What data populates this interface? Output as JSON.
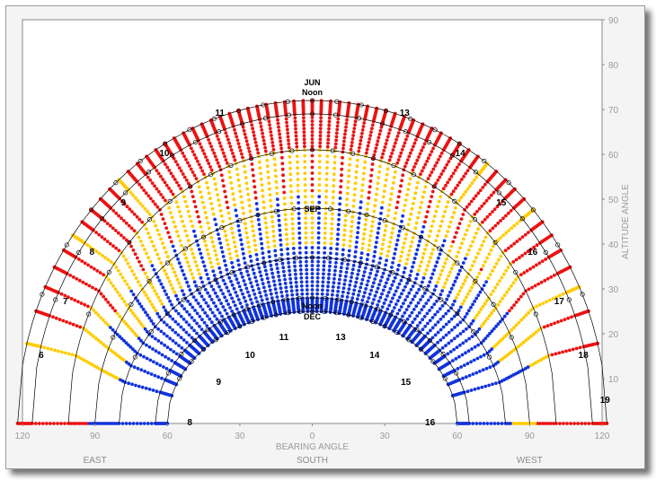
{
  "colors": {
    "hot": "#ee1111",
    "warm": "#ffcc00",
    "cool": "#1133dd",
    "curve": "#000000",
    "frame_bg": "#f4f4f4",
    "plot_bg": "#ffffff",
    "axis_text": "#9a9a9a"
  },
  "chart_data": {
    "type": "scatter",
    "title": "",
    "xlabel": "BEARING ANGLE",
    "ylabel": "ALTITUDE ANGLE",
    "xlim": [
      -120,
      120
    ],
    "ylim": [
      0,
      90
    ],
    "x_tick_labels": [
      "120",
      "90",
      "60",
      "30",
      "0",
      "30",
      "60",
      "90",
      "120"
    ],
    "x_tick_values": [
      -120,
      -90,
      -60,
      -30,
      0,
      30,
      60,
      90,
      120
    ],
    "y_ticks": [
      10,
      20,
      30,
      40,
      50,
      60,
      70,
      80,
      90
    ],
    "compass_labels": [
      {
        "text": "EAST",
        "bearing": -90
      },
      {
        "text": "SOUTH",
        "bearing": 0
      },
      {
        "text": "WEST",
        "bearing": 90
      }
    ],
    "sun_paths": [
      {
        "name": "JUN",
        "noon_altitude": 72,
        "half_width": 122,
        "color": "hot"
      },
      {
        "name": "",
        "noon_altitude": 69,
        "half_width": 116,
        "color": "hot"
      },
      {
        "name": "",
        "noon_altitude": 61,
        "half_width": 101,
        "color": "hot"
      },
      {
        "name": "SEP",
        "noon_altitude": 48,
        "half_width": 90,
        "color": "warm"
      },
      {
        "name": "",
        "noon_altitude": 37,
        "half_width": 80,
        "color": "warm"
      },
      {
        "name": "",
        "noon_altitude": 28,
        "half_width": 65,
        "color": "cool"
      },
      {
        "name": "DEC",
        "noon_altitude": 25,
        "half_width": 60,
        "color": "cool"
      }
    ],
    "hour_lines": [
      {
        "hour": "6",
        "bearing": -110,
        "alt": 14
      },
      {
        "hour": "7",
        "bearing": -100,
        "alt": 26
      },
      {
        "hour": "8",
        "bearing": -89,
        "alt": 37
      },
      {
        "hour": "9",
        "bearing": -76,
        "alt": 48
      },
      {
        "hour": "10",
        "bearing": -59,
        "alt": 59
      },
      {
        "hour": "11",
        "bearing": -36,
        "alt": 68
      },
      {
        "hour": "13",
        "bearing": 36,
        "alt": 68
      },
      {
        "hour": "14",
        "bearing": 59,
        "alt": 59
      },
      {
        "hour": "15",
        "bearing": 76,
        "alt": 48
      },
      {
        "hour": "16",
        "bearing": 89,
        "alt": 37
      },
      {
        "hour": "17",
        "bearing": 100,
        "alt": 26
      },
      {
        "hour": "18",
        "bearing": 110,
        "alt": 14
      },
      {
        "hour": "19",
        "bearing": 119,
        "alt": 4
      }
    ],
    "dec_hour_labels": [
      {
        "hour": "8",
        "bearing": -53,
        "alt": 2
      },
      {
        "hour": "9",
        "bearing": -41,
        "alt": 11
      },
      {
        "hour": "10",
        "bearing": -28,
        "alt": 17
      },
      {
        "hour": "11",
        "bearing": -14,
        "alt": 21
      },
      {
        "hour": "13",
        "bearing": 14,
        "alt": 21
      },
      {
        "hour": "14",
        "bearing": 28,
        "alt": 17
      },
      {
        "hour": "15",
        "bearing": 41,
        "alt": 11
      },
      {
        "hour": "16",
        "bearing": 51,
        "alt": 2
      }
    ],
    "annotations": {
      "jun": "JUN",
      "jun_noon": "Noon",
      "sep": "SEP",
      "dec_noon": "Noon",
      "dec": "DEC"
    },
    "grid": false
  }
}
